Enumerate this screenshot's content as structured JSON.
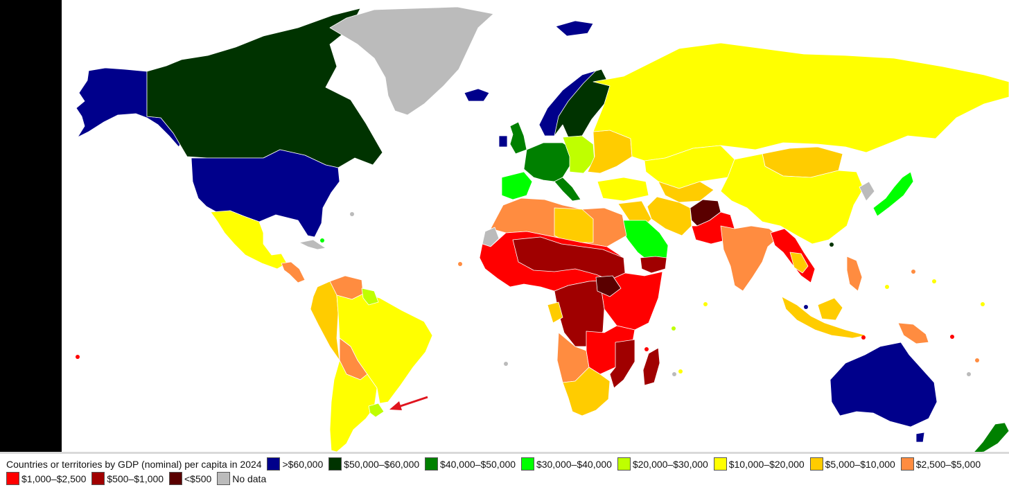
{
  "legend": {
    "title": "Countries or territories by GDP (nominal) per capita in 2024",
    "items": [
      {
        "label": ">$60,000",
        "color": "#00008b"
      },
      {
        "label": "$50,000–$60,000",
        "color": "#003300"
      },
      {
        "label": "$40,000–$50,000",
        "color": "#008000"
      },
      {
        "label": "$30,000–$40,000",
        "color": "#00ff00"
      },
      {
        "label": "$20,000–$30,000",
        "color": "#bfff00"
      },
      {
        "label": "$10,000–$20,000",
        "color": "#ffff00"
      },
      {
        "label": "$5,000–$10,000",
        "color": "#ffcc00"
      },
      {
        "label": "$2,500–$5,000",
        "color": "#ff8c40"
      },
      {
        "label": "$1,000–$2,500",
        "color": "#ff0000"
      },
      {
        "label": "$500–$1,000",
        "color": "#a00000"
      },
      {
        "label": "<$500",
        "color": "#5a0000"
      },
      {
        "label": "No data",
        "color": "#bbbbbb"
      }
    ]
  },
  "regions": [
    {
      "name": "alaska",
      "tier": ">$60,000"
    },
    {
      "name": "usa",
      "tier": ">$60,000"
    },
    {
      "name": "canada",
      "tier": "$50,000–$60,000"
    },
    {
      "name": "greenland",
      "tier": "No data"
    },
    {
      "name": "mexico",
      "tier": "$10,000–$20,000"
    },
    {
      "name": "brazil",
      "tier": "$10,000–$20,000"
    },
    {
      "name": "argentina-chile",
      "tier": "$10,000–$20,000"
    },
    {
      "name": "andes",
      "tier": "$5,000–$10,000"
    },
    {
      "name": "bolivia",
      "tier": "$2,500–$5,000"
    },
    {
      "name": "uruguay",
      "tier": "$20,000–$30,000"
    },
    {
      "name": "russia",
      "tier": "$10,000–$20,000"
    },
    {
      "name": "china",
      "tier": "$10,000–$20,000"
    },
    {
      "name": "mongolia",
      "tier": "$5,000–$10,000"
    },
    {
      "name": "india",
      "tier": "$2,500–$5,000"
    },
    {
      "name": "afghanistan",
      "tier": "<$500"
    },
    {
      "name": "saudi-arabia",
      "tier": "$30,000–$40,000"
    },
    {
      "name": "iran",
      "tier": "$5,000–$10,000"
    },
    {
      "name": "japan",
      "tier": "$30,000–$40,000"
    },
    {
      "name": "australia",
      "tier": ">$60,000"
    },
    {
      "name": "new-zealand",
      "tier": "$40,000–$50,000"
    },
    {
      "name": "indonesia",
      "tier": "$5,000–$10,000"
    },
    {
      "name": "papua-new-guinea",
      "tier": "$2,500–$5,000"
    },
    {
      "name": "madagascar",
      "tier": "$500–$1,000"
    },
    {
      "name": "south-africa",
      "tier": "$5,000–$10,000"
    },
    {
      "name": "central-africa",
      "tier": "$500–$1,000"
    },
    {
      "name": "north-africa",
      "tier": "$2,500–$5,000"
    },
    {
      "name": "europe",
      "tier": "$40,000–$50,000"
    },
    {
      "name": "scandinavia",
      "tier": "$50,000–$60,000"
    },
    {
      "name": "iceland",
      "tier": ">$60,000"
    }
  ],
  "annotation": {
    "name": "red-arrow",
    "target": "uruguay",
    "color": "#e0141e"
  }
}
